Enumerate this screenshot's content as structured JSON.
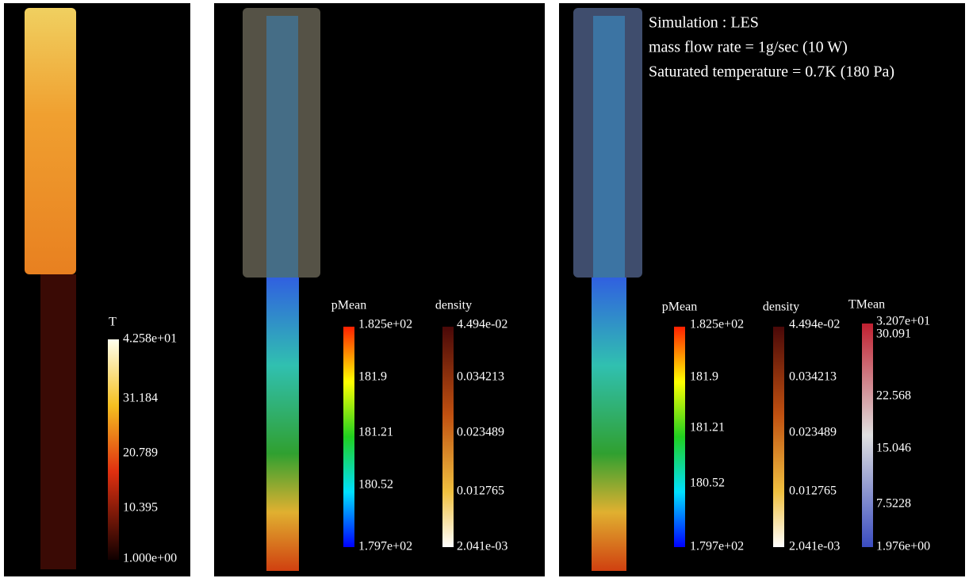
{
  "panels": [
    {
      "colorbars": [
        {
          "title": "T",
          "labels": [
            "4.258e+01",
            "31.184",
            "20.789",
            "10.395",
            "1.000e+00"
          ]
        }
      ]
    },
    {
      "colorbars": [
        {
          "title": "pMean",
          "labels": [
            "1.825e+02",
            "181.9",
            "181.21",
            "180.52",
            "1.797e+02"
          ]
        },
        {
          "title": "density",
          "labels": [
            "4.494e-02",
            "0.034213",
            "0.023489",
            "0.012765",
            "2.041e-03"
          ]
        }
      ]
    },
    {
      "annotation": [
        "Simulation : LES",
        "mass flow rate = 1g/sec (10 W)",
        "Saturated temperature = 0.7K (180 Pa)"
      ],
      "colorbars": [
        {
          "title": "pMean",
          "labels": [
            "1.825e+02",
            "181.9",
            "181.21",
            "180.52",
            "1.797e+02"
          ]
        },
        {
          "title": "density",
          "labels": [
            "4.494e-02",
            "0.034213",
            "0.023489",
            "0.012765",
            "2.041e-03"
          ]
        },
        {
          "title": "TMean",
          "labels": [
            "3.207e+01",
            "30.091",
            "22.568",
            "15.046",
            "7.5228",
            "1.976e+00"
          ]
        }
      ]
    }
  ]
}
